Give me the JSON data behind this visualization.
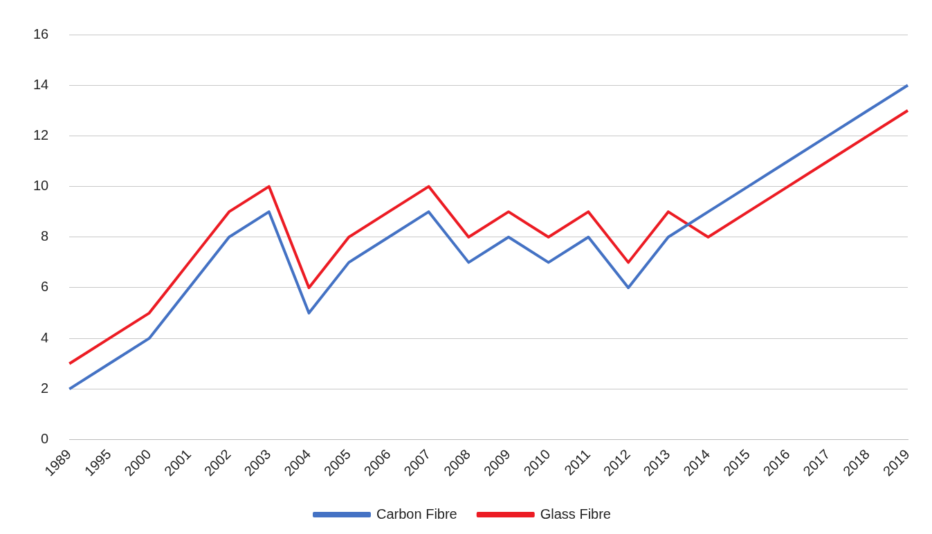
{
  "chart_data": {
    "type": "line",
    "categories": [
      "1989",
      "1995",
      "2000",
      "2001",
      "2002",
      "2003",
      "2004",
      "2005",
      "2006",
      "2007",
      "2008",
      "2009",
      "2010",
      "2011",
      "2012",
      "2013",
      "2014",
      "2015",
      "2016",
      "2017",
      "2018",
      "2019"
    ],
    "series": [
      {
        "name": "Carbon Fibre",
        "color": "#4472c4",
        "values": [
          2,
          3,
          4,
          6,
          8,
          9,
          5,
          7,
          8,
          9,
          7,
          8,
          7,
          8,
          6,
          8,
          9,
          10,
          11,
          12,
          13,
          14
        ]
      },
      {
        "name": "Glass Fibre",
        "color": "#ec1c24",
        "values": [
          3,
          4,
          5,
          7,
          9,
          10,
          6,
          8,
          9,
          10,
          8,
          9,
          8,
          9,
          7,
          9,
          8,
          9,
          10,
          11,
          12,
          13
        ]
      }
    ],
    "ylim": [
      0,
      16
    ],
    "yticks": [
      0,
      2,
      4,
      6,
      8,
      10,
      12,
      14,
      16
    ],
    "grid": "y",
    "legend": "bottom",
    "marker": "none",
    "line_style": "solid"
  }
}
